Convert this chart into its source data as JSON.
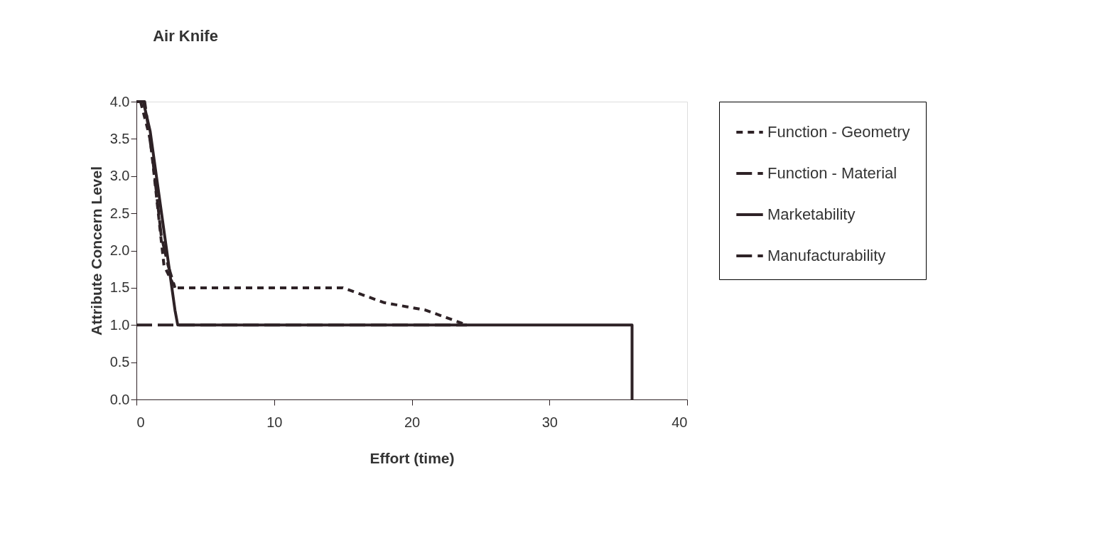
{
  "chart_data": {
    "type": "line",
    "title": "Air Knife",
    "xlabel": "Effort (time)",
    "ylabel": "Attribute Concern Level",
    "xlim": [
      0,
      40
    ],
    "xticks": [
      0,
      10,
      20,
      30,
      40
    ],
    "ylim": [
      0,
      4
    ],
    "yticks": [
      {
        "value": 0,
        "label": "0.0"
      },
      {
        "value": 0.5,
        "label": "0.5"
      },
      {
        "value": 1,
        "label": "1.0"
      },
      {
        "value": 1.5,
        "label": "1.5"
      },
      {
        "value": 2,
        "label": "2.0"
      },
      {
        "value": 2.5,
        "label": "2.5"
      },
      {
        "value": 3,
        "label": "3.0"
      },
      {
        "value": 3.5,
        "label": "3.5"
      },
      {
        "value": 4,
        "label": "4.0"
      }
    ],
    "grid": false,
    "legend": "right",
    "marker": "none",
    "series": [
      {
        "name": "Function - Geometry",
        "color": "#2e2226",
        "line_style": "dotted",
        "x": [
          0.3,
          1,
          2,
          2.8,
          15,
          18,
          21,
          24
        ],
        "values": [
          4.0,
          3.5,
          1.8,
          1.5,
          1.5,
          1.3,
          1.2,
          1.0
        ]
      },
      {
        "name": "Function - Material",
        "color": "#2e2226",
        "line_style": "dashed",
        "x": [
          0,
          24
        ],
        "values": [
          1.0,
          1.0
        ]
      },
      {
        "name": "Marketability",
        "color": "#2e2226",
        "line_style": "solid",
        "x": [
          0.5,
          1,
          2.5,
          2.8,
          3,
          24,
          36,
          36
        ],
        "values": [
          4.0,
          3.6,
          1.6,
          1.2,
          1.0,
          1.0,
          1.0,
          0.0
        ]
      },
      {
        "name": "Manufacturability",
        "color": "#2e2226",
        "line_style": "dashed",
        "x": [
          0,
          0.6,
          1.2,
          1.8,
          2.3,
          2.8
        ],
        "values": [
          4.0,
          4.0,
          3.2,
          2.2,
          1.8,
          1.5
        ]
      }
    ]
  }
}
